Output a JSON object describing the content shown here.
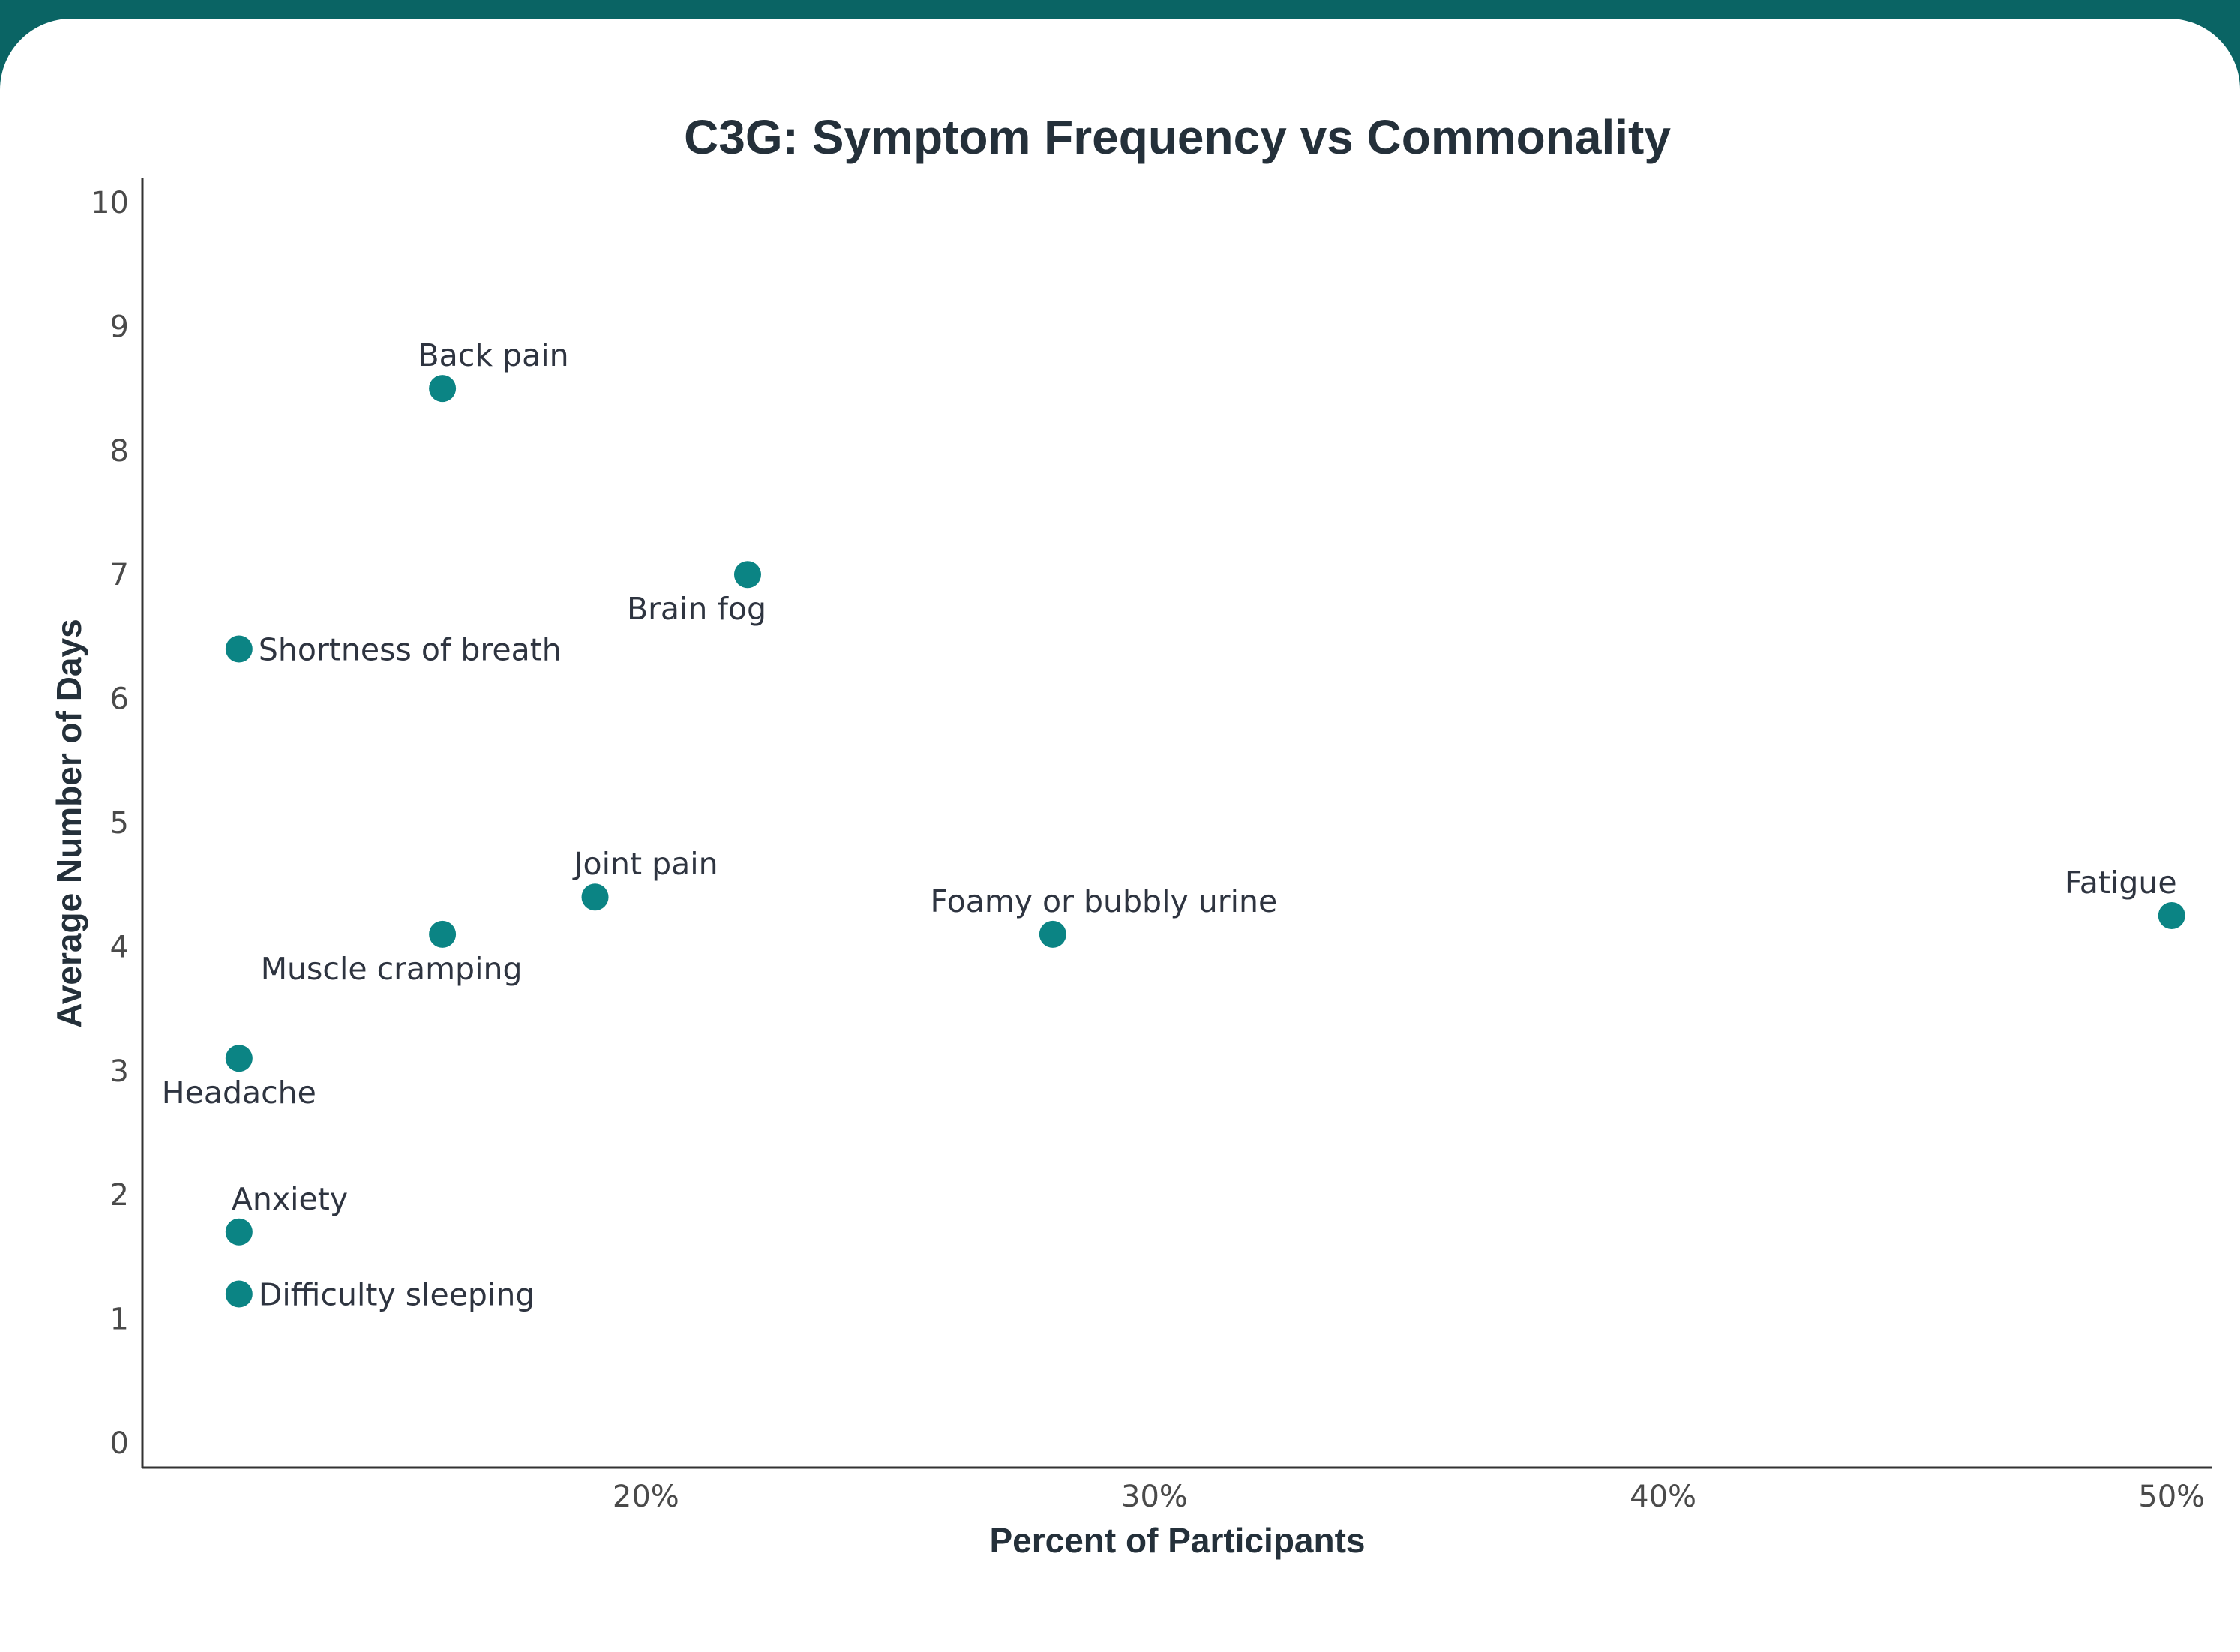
{
  "chart_data": {
    "type": "scatter",
    "title": "C3G: Symptom Frequency vs Commonality",
    "xlabel": "Percent of Participants",
    "ylabel": "Average Number of Days",
    "xlim": [
      10.1,
      50.8
    ],
    "ylim": [
      -0.2,
      10.2
    ],
    "x_ticks": [
      20,
      30,
      40,
      50
    ],
    "x_tick_labels": [
      "20%",
      "30%",
      "40%",
      "50%"
    ],
    "y_ticks": [
      0,
      1,
      2,
      3,
      4,
      5,
      6,
      7,
      8,
      9,
      10
    ],
    "y_tick_labels": [
      "0",
      "1",
      "2",
      "3",
      "4",
      "5",
      "6",
      "7",
      "8",
      "9",
      "10"
    ],
    "grid": false,
    "marker_color": "#0b8484",
    "points": [
      {
        "label": "Back pain",
        "x": 16,
        "y": 8.5,
        "label_pos": "above"
      },
      {
        "label": "Brain fog",
        "x": 22,
        "y": 7.0,
        "label_pos": "below-left"
      },
      {
        "label": "Shortness of breath",
        "x": 12,
        "y": 6.4,
        "label_pos": "right"
      },
      {
        "label": "Joint pain",
        "x": 19,
        "y": 4.4,
        "label_pos": "above"
      },
      {
        "label": "Muscle cramping",
        "x": 16,
        "y": 4.1,
        "label_pos": "below-left"
      },
      {
        "label": "Foamy or bubbly urine",
        "x": 28,
        "y": 4.1,
        "label_pos": "above"
      },
      {
        "label": "Fatigue",
        "x": 50,
        "y": 4.25,
        "label_pos": "above-left"
      },
      {
        "label": "Headache",
        "x": 12,
        "y": 3.1,
        "label_pos": "below"
      },
      {
        "label": "Anxiety",
        "x": 12,
        "y": 1.7,
        "label_pos": "above-right"
      },
      {
        "label": "Difficulty sleeping",
        "x": 12,
        "y": 1.2,
        "label_pos": "right"
      }
    ]
  }
}
